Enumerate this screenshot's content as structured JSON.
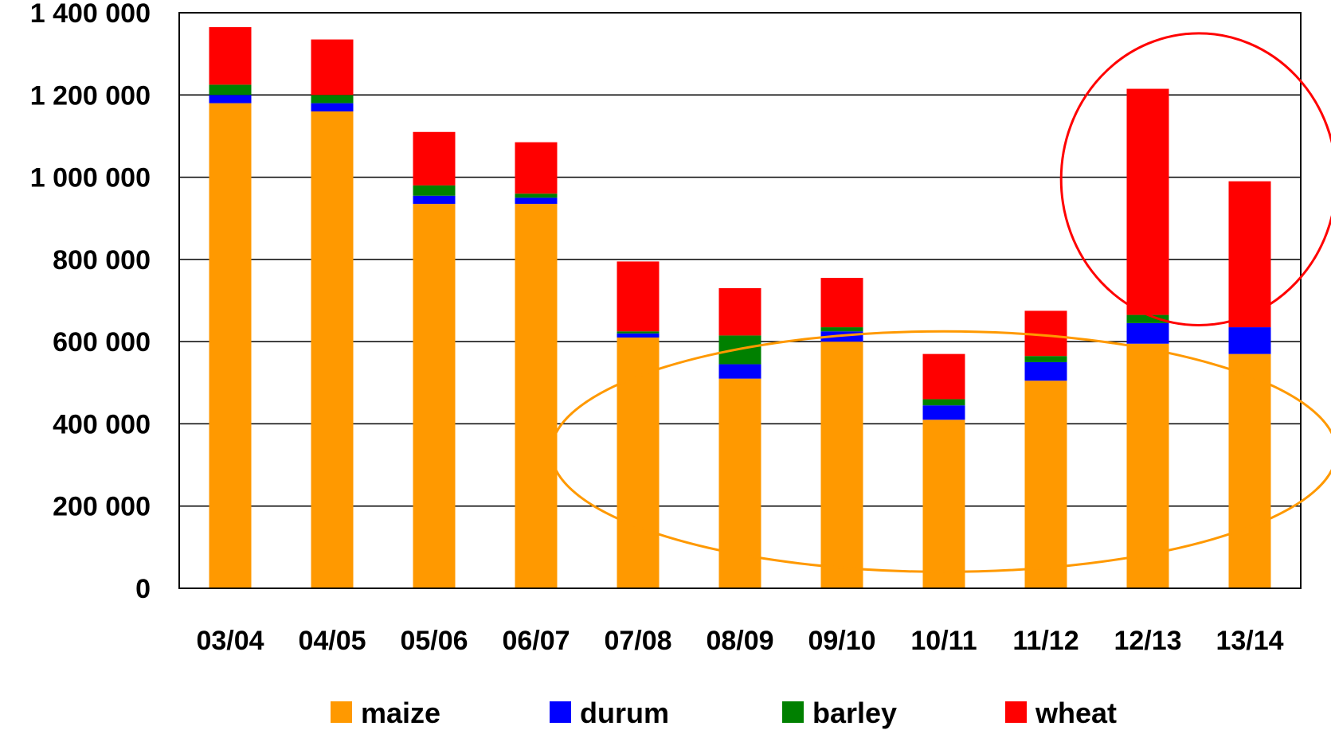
{
  "chart_data": {
    "type": "bar",
    "stacked": true,
    "categories": [
      "03/04",
      "04/05",
      "05/06",
      "06/07",
      "07/08",
      "08/09",
      "09/10",
      "10/11",
      "11/12",
      "12/13",
      "13/14"
    ],
    "series": [
      {
        "name": "maize",
        "color": "#FF9900",
        "values": [
          1180000,
          1160000,
          935000,
          935000,
          610000,
          510000,
          600000,
          410000,
          505000,
          595000,
          570000
        ]
      },
      {
        "name": "durum",
        "color": "#0000FF",
        "values": [
          20000,
          20000,
          20000,
          15000,
          10000,
          35000,
          25000,
          35000,
          45000,
          50000,
          65000
        ]
      },
      {
        "name": "barley",
        "color": "#008000",
        "values": [
          25000,
          20000,
          25000,
          10000,
          5000,
          70000,
          10000,
          15000,
          15000,
          20000,
          0
        ]
      },
      {
        "name": "wheat",
        "color": "#FF0000",
        "values": [
          140000,
          135000,
          130000,
          125000,
          170000,
          115000,
          120000,
          110000,
          110000,
          550000,
          355000
        ]
      }
    ],
    "ylim": [
      0,
      1400000
    ],
    "yticks": [
      0,
      200000,
      400000,
      600000,
      800000,
      1000000,
      1200000,
      1400000
    ],
    "ytick_labels": [
      "0",
      "200 000",
      "400 000",
      "600 000",
      "800 000",
      "1 000 000",
      "1 200 000",
      "1 400 000"
    ],
    "grid": true,
    "legend_position": "bottom",
    "annotations": [
      {
        "shape": "ellipse",
        "color": "#FF0000",
        "around": [
          "12/13",
          "13/14"
        ],
        "y_range": [
          640000,
          1350000
        ]
      },
      {
        "shape": "ellipse",
        "color": "#FF9900",
        "around": [
          "07/08",
          "13/14"
        ],
        "y_range": [
          40000,
          625000
        ]
      }
    ]
  }
}
